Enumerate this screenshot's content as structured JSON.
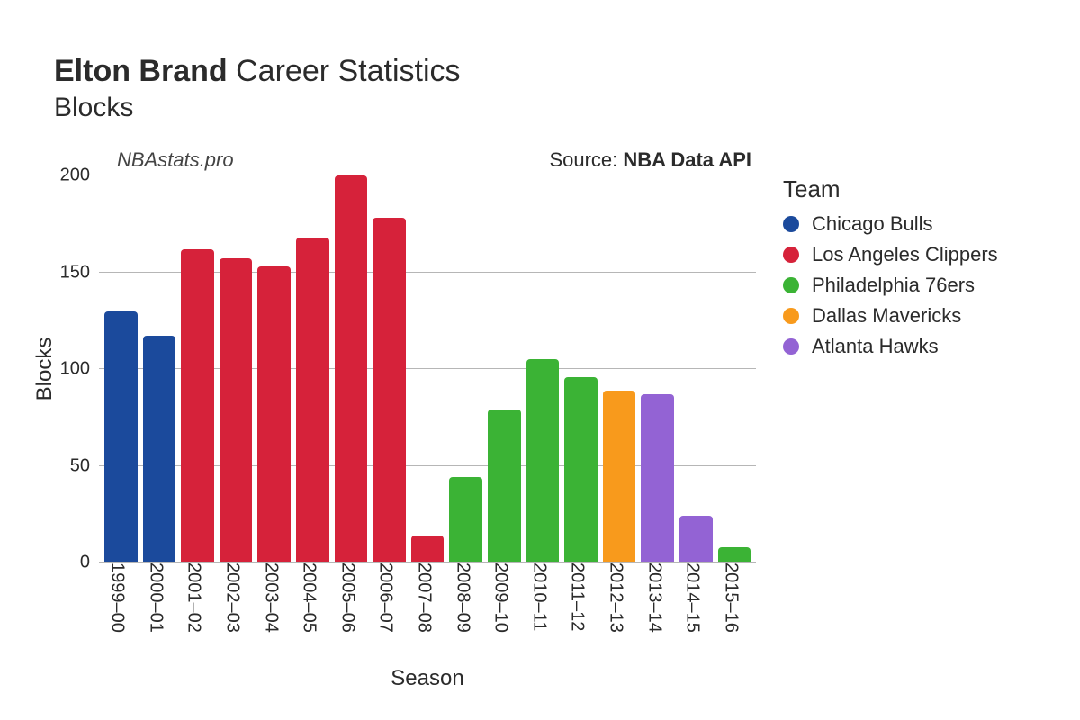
{
  "title": {
    "bold": "Elton Brand",
    "rest": " Career Statistics",
    "subtitle": "Blocks"
  },
  "watermark": "NBAstats.pro",
  "source": {
    "prefix": "Source: ",
    "name": "NBA Data API"
  },
  "axes": {
    "x_title": "Season",
    "y_title": "Blocks"
  },
  "chart": {
    "type": "bar",
    "ylim": [
      0,
      200
    ],
    "ytick_step": 50,
    "yticks": [
      0,
      50,
      100,
      150,
      200
    ],
    "grid_color": "#b6b6b6",
    "background_color": "#ffffff",
    "bar_border_radius": 4,
    "label_fontsize": 20,
    "axis_title_fontsize": 24,
    "seasons": [
      {
        "label": "1999–00",
        "value": 130,
        "team": "Chicago Bulls"
      },
      {
        "label": "2000–01",
        "value": 117,
        "team": "Chicago Bulls"
      },
      {
        "label": "2001–02",
        "value": 162,
        "team": "Los Angeles Clippers"
      },
      {
        "label": "2002–03",
        "value": 157,
        "team": "Los Angeles Clippers"
      },
      {
        "label": "2003–04",
        "value": 153,
        "team": "Los Angeles Clippers"
      },
      {
        "label": "2004–05",
        "value": 168,
        "team": "Los Angeles Clippers"
      },
      {
        "label": "2005–06",
        "value": 200,
        "team": "Los Angeles Clippers"
      },
      {
        "label": "2006–07",
        "value": 178,
        "team": "Los Angeles Clippers"
      },
      {
        "label": "2007–08",
        "value": 14,
        "team": "Los Angeles Clippers"
      },
      {
        "label": "2008–09",
        "value": 44,
        "team": "Philadelphia 76ers"
      },
      {
        "label": "2009–10",
        "value": 79,
        "team": "Philadelphia 76ers"
      },
      {
        "label": "2010–11",
        "value": 105,
        "team": "Philadelphia 76ers"
      },
      {
        "label": "2011–12",
        "value": 96,
        "team": "Philadelphia 76ers"
      },
      {
        "label": "2012–13",
        "value": 89,
        "team": "Dallas Mavericks"
      },
      {
        "label": "2013–14",
        "value": 87,
        "team": "Atlanta Hawks"
      },
      {
        "label": "2014–15",
        "value": 24,
        "team": "Atlanta Hawks"
      },
      {
        "label": "2015–16",
        "value": 8,
        "team": "Philadelphia 76ers"
      }
    ]
  },
  "legend": {
    "title": "Team",
    "items": [
      {
        "name": "Chicago Bulls",
        "color": "#1b4a9c"
      },
      {
        "name": "Los Angeles Clippers",
        "color": "#d6223a"
      },
      {
        "name": "Philadelphia 76ers",
        "color": "#3bb335"
      },
      {
        "name": "Dallas Mavericks",
        "color": "#f89a1c"
      },
      {
        "name": "Atlanta Hawks",
        "color": "#9363d4"
      }
    ]
  }
}
